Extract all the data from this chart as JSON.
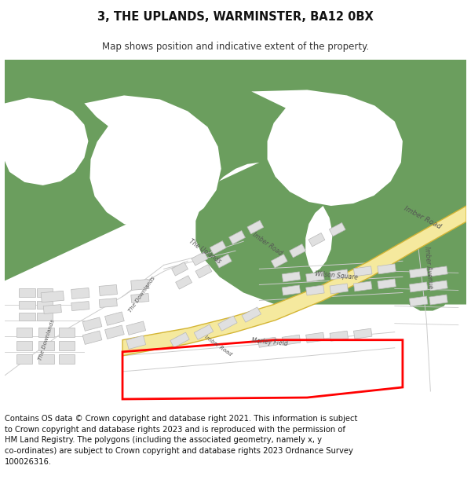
{
  "title": "3, THE UPLANDS, WARMINSTER, BA12 0BX",
  "subtitle": "Map shows position and indicative extent of the property.",
  "footer": "Contains OS data © Crown copyright and database right 2021. This information is subject\nto Crown copyright and database rights 2023 and is reproduced with the permission of\nHM Land Registry. The polygons (including the associated geometry, namely x, y\nco-ordinates) are subject to Crown copyright and database rights 2023 Ordnance Survey\n100026316.",
  "bg_color": "#ffffff",
  "map_bg": "#ffffff",
  "green_color": "#6b9e5e",
  "road_fill": "#f5e99e",
  "road_edge": "#d4b535",
  "building_fill": "#e0e0e0",
  "building_edge": "#b8b8b8",
  "red_color": "#ff0000",
  "text_color": "#555555",
  "title_fontsize": 10.5,
  "subtitle_fontsize": 8.5,
  "footer_fontsize": 7.2
}
